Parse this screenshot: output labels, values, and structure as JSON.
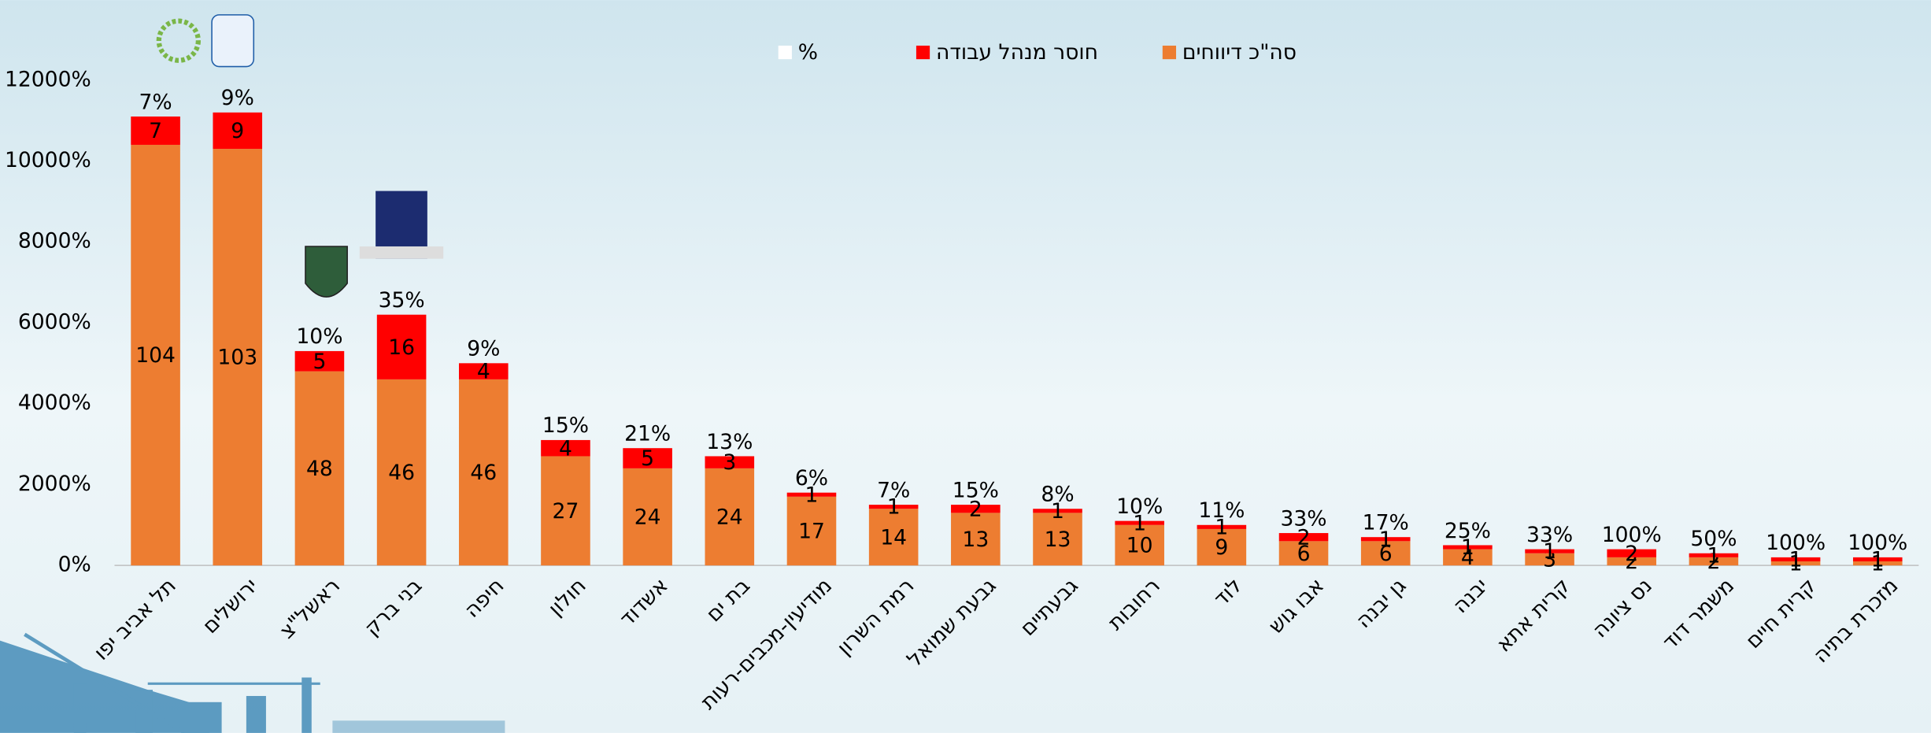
{
  "chart_data": {
    "type": "bar",
    "stacked": true,
    "categories": [
      "תל אביב יפו",
      "ירושלים",
      "ראשל\"צ",
      "בני ברק",
      "חיפה",
      "חולון",
      "אשדוד",
      "בת ים",
      "מודיעין-מכבים-רעות",
      "רמת השרון",
      "גבעת שמואל",
      "גבעתיים",
      "רחובות",
      "לוד",
      "אבו גוש",
      "גן יבנה",
      "יבנה",
      "קרית אתא",
      "נס ציונה",
      "משמר דוד",
      "קרית חיים",
      "מזכרת בתיה"
    ],
    "series": [
      {
        "name": "סה\"כ דיווחים",
        "color": "#ED7D31",
        "values": [
          104,
          103,
          48,
          46,
          46,
          27,
          24,
          24,
          17,
          14,
          13,
          13,
          10,
          9,
          6,
          6,
          4,
          3,
          2,
          2,
          1,
          1
        ]
      },
      {
        "name": "חוסר מנהל עבודה",
        "color": "#FF0000",
        "values": [
          7,
          9,
          5,
          16,
          4,
          4,
          5,
          3,
          1,
          1,
          2,
          1,
          1,
          1,
          2,
          1,
          1,
          1,
          2,
          1,
          1,
          1
        ]
      },
      {
        "name": "%",
        "color": "#FFFFFF",
        "values": [
          7,
          9,
          10,
          35,
          9,
          15,
          21,
          13,
          6,
          7,
          15,
          8,
          10,
          11,
          33,
          17,
          25,
          33,
          100,
          50,
          100,
          100
        ],
        "value_labels": [
          "7%",
          "9%",
          "10%",
          "35%",
          "9%",
          "15%",
          "21%",
          "13%",
          "6%",
          "7%",
          "15%",
          "8%",
          "10%",
          "11%",
          "33%",
          "17%",
          "25%",
          "33%",
          "100%",
          "50%",
          "100%",
          "100%"
        ]
      }
    ],
    "ylim": [
      0,
      120
    ],
    "yticks": [
      {
        "value": 0,
        "label": "0%"
      },
      {
        "value": 20,
        "label": "2000%"
      },
      {
        "value": 40,
        "label": "4000%"
      },
      {
        "value": 60,
        "label": "6000%"
      },
      {
        "value": 80,
        "label": "8000%"
      },
      {
        "value": 100,
        "label": "10000%"
      },
      {
        "value": 120,
        "label": "12000%"
      }
    ],
    "grid": false,
    "legend": "top"
  }
}
